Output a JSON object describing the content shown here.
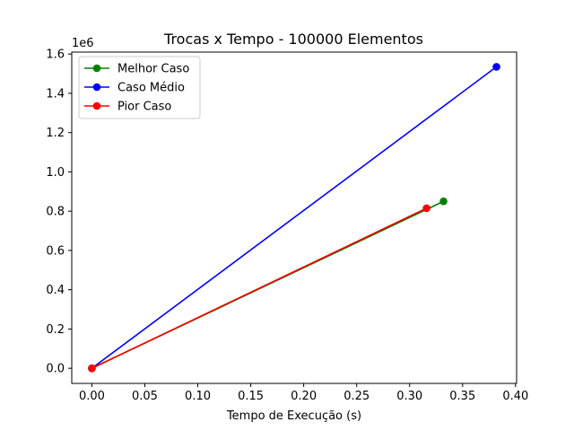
{
  "chart_data": {
    "type": "line",
    "title": "Trocas x Tempo - 100000 Elementos",
    "xlabel": "Tempo de Execução (s)",
    "ylabel": "",
    "y_offset_label": "1e6",
    "xlim": [
      -0.019,
      0.401
    ],
    "ylim": [
      -0.077,
      1.61
    ],
    "x_ticks": [
      0.0,
      0.05,
      0.1,
      0.15,
      0.2,
      0.25,
      0.3,
      0.35,
      0.4
    ],
    "x_tick_labels": [
      "0.00",
      "0.05",
      "0.10",
      "0.15",
      "0.20",
      "0.25",
      "0.30",
      "0.35",
      "0.40"
    ],
    "y_ticks": [
      0.0,
      0.2,
      0.4,
      0.6,
      0.8,
      1.0,
      1.2,
      1.4,
      1.6
    ],
    "y_tick_labels": [
      "0.0",
      "0.2",
      "0.4",
      "0.6",
      "0.8",
      "1.0",
      "1.2",
      "1.4",
      "1.6"
    ],
    "legend_position": "top-left",
    "grid": false,
    "series": [
      {
        "name": "Melhor Caso",
        "color": "#008000",
        "x": [
          0.0,
          0.332
        ],
        "y": [
          0.0,
          0.85
        ]
      },
      {
        "name": "Caso Médio",
        "color": "#0000ff",
        "x": [
          0.0,
          0.382
        ],
        "y": [
          0.0,
          1.535
        ]
      },
      {
        "name": "Pior Caso",
        "color": "#ff0000",
        "x": [
          0.0,
          0.316
        ],
        "y": [
          0.0,
          0.815
        ]
      }
    ]
  }
}
